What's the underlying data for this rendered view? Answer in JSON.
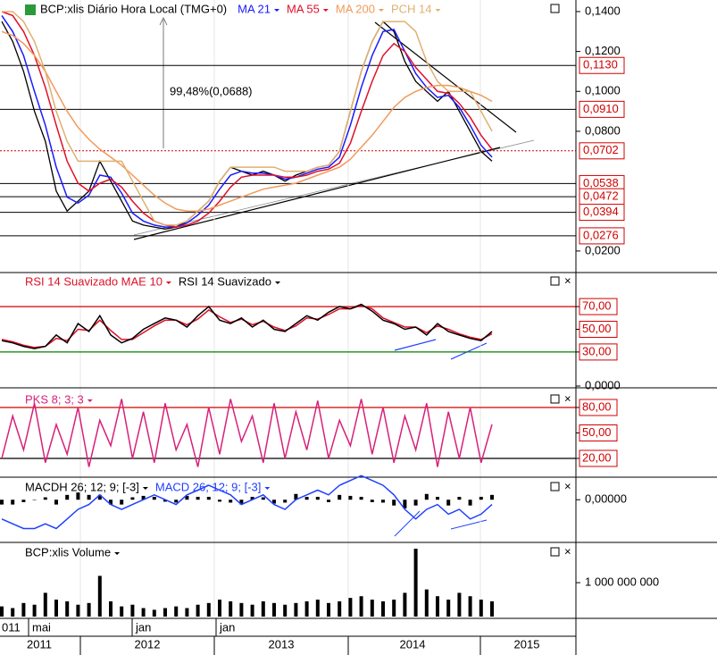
{
  "chart_data": [
    {
      "type": "line",
      "title": "BCP:xlis Diário Hora Local (TMG+0)",
      "annotation": "99,48%(0,0688)",
      "ylim": [
        0.0101,
        0.1458
      ],
      "yticks": [
        {
          "value": 0.14,
          "label": "0,1400"
        },
        {
          "value": 0.12,
          "label": "0,1200"
        },
        {
          "value": 0.1,
          "label": "0,1000"
        },
        {
          "value": 0.08,
          "label": "0,0800"
        },
        {
          "value": 0.02,
          "label": "0,0200"
        }
      ],
      "levels": [
        {
          "value": 0.113,
          "label": "0,1130"
        },
        {
          "value": 0.091,
          "label": "0,0910"
        },
        {
          "value": 0.0702,
          "label": "0,0702"
        },
        {
          "value": 0.0538,
          "label": "0,0538"
        },
        {
          "value": 0.0472,
          "label": "0,0472"
        },
        {
          "value": 0.0394,
          "label": "0,0394"
        },
        {
          "value": 0.0276,
          "label": "0,0276"
        }
      ],
      "series": [
        {
          "color": "#000000",
          "values": [
            0.135,
            0.125,
            0.11,
            0.09,
            0.075,
            0.05,
            0.04,
            0.045,
            0.05,
            0.065,
            0.055,
            0.045,
            0.035,
            0.033,
            0.032,
            0.031,
            0.032,
            0.035,
            0.04,
            0.045,
            0.055,
            0.062,
            0.06,
            0.058,
            0.06,
            0.058,
            0.055,
            0.058,
            0.06,
            0.062,
            0.063,
            0.07,
            0.09,
            0.11,
            0.125,
            0.135,
            0.13,
            0.115,
            0.105,
            0.1,
            0.095,
            0.1,
            0.09,
            0.08,
            0.07,
            0.065
          ]
        },
        {
          "name": "MA 21",
          "color": "#1a1aff",
          "values": [
            0.138,
            0.13,
            0.118,
            0.1,
            0.083,
            0.062,
            0.047,
            0.044,
            0.048,
            0.058,
            0.057,
            0.049,
            0.039,
            0.035,
            0.033,
            0.032,
            0.032,
            0.034,
            0.038,
            0.043,
            0.051,
            0.058,
            0.06,
            0.059,
            0.059,
            0.058,
            0.056,
            0.057,
            0.059,
            0.061,
            0.062,
            0.067,
            0.083,
            0.102,
            0.118,
            0.13,
            0.131,
            0.12,
            0.109,
            0.102,
            0.097,
            0.098,
            0.092,
            0.083,
            0.073,
            0.067
          ]
        },
        {
          "name": "MA 55",
          "color": "#e0102a",
          "values": [
            0.14,
            0.138,
            0.13,
            0.118,
            0.102,
            0.083,
            0.065,
            0.054,
            0.05,
            0.054,
            0.056,
            0.052,
            0.045,
            0.039,
            0.035,
            0.033,
            0.032,
            0.033,
            0.035,
            0.039,
            0.045,
            0.052,
            0.057,
            0.058,
            0.058,
            0.058,
            0.057,
            0.057,
            0.058,
            0.06,
            0.061,
            0.064,
            0.074,
            0.09,
            0.105,
            0.118,
            0.124,
            0.12,
            0.112,
            0.106,
            0.1,
            0.099,
            0.094,
            0.087,
            0.078,
            0.071
          ]
        },
        {
          "name": "MA 200",
          "color": "#f09a5a",
          "values": [
            0.13,
            0.128,
            0.124,
            0.118,
            0.11,
            0.1,
            0.09,
            0.082,
            0.076,
            0.071,
            0.067,
            0.063,
            0.058,
            0.053,
            0.048,
            0.044,
            0.041,
            0.04,
            0.04,
            0.041,
            0.043,
            0.045,
            0.047,
            0.049,
            0.051,
            0.052,
            0.053,
            0.054,
            0.056,
            0.058,
            0.06,
            0.062,
            0.066,
            0.072,
            0.078,
            0.085,
            0.092,
            0.097,
            0.1,
            0.102,
            0.103,
            0.103,
            0.102,
            0.1,
            0.098,
            0.095
          ]
        },
        {
          "name": "PCH 14",
          "color": "#e0b070",
          "values": [
            0.14,
            0.14,
            0.135,
            0.125,
            0.11,
            0.09,
            0.075,
            0.065,
            0.065,
            0.065,
            0.065,
            0.065,
            0.055,
            0.045,
            0.035,
            0.033,
            0.033,
            0.035,
            0.04,
            0.045,
            0.055,
            0.062,
            0.062,
            0.062,
            0.062,
            0.062,
            0.06,
            0.06,
            0.06,
            0.062,
            0.063,
            0.07,
            0.09,
            0.11,
            0.125,
            0.135,
            0.135,
            0.135,
            0.13,
            0.115,
            0.105,
            0.1,
            0.1,
            0.1,
            0.09,
            0.08
          ]
        }
      ]
    },
    {
      "type": "line",
      "ylim": [
        0,
        100
      ],
      "boxed": true,
      "yticks": [
        {
          "value": 70,
          "label": "70,00"
        },
        {
          "value": 50,
          "label": "50,00"
        },
        {
          "value": 30,
          "label": "30,00"
        },
        {
          "value": 0,
          "label": "0,0000"
        }
      ],
      "reference_lines": [
        70,
        30
      ],
      "reference_colors": [
        "#d00000",
        "#008000"
      ],
      "series": [
        {
          "name": "RSI 14 Suavizado MAE 10",
          "color": "#e0102a",
          "values": [
            41,
            39,
            36,
            34,
            35,
            42,
            40,
            50,
            49,
            58,
            49,
            41,
            41,
            47,
            53,
            58,
            58,
            54,
            59,
            67,
            61,
            56,
            59,
            54,
            57,
            52,
            49,
            53,
            60,
            59,
            63,
            68,
            68,
            71,
            68,
            60,
            56,
            52,
            52,
            47,
            53,
            50,
            46,
            43,
            41,
            46
          ]
        },
        {
          "name": "RSI 14 Suavizado",
          "color": "#000000",
          "values": [
            40,
            38,
            35,
            33,
            35,
            45,
            38,
            55,
            48,
            62,
            45,
            38,
            42,
            50,
            55,
            60,
            58,
            52,
            62,
            70,
            58,
            55,
            60,
            52,
            58,
            50,
            48,
            55,
            62,
            58,
            65,
            70,
            68,
            72,
            66,
            58,
            55,
            50,
            52,
            45,
            55,
            48,
            45,
            42,
            40,
            48
          ]
        }
      ]
    },
    {
      "type": "line",
      "ylim": [
        0,
        100
      ],
      "boxed": true,
      "yticks": [
        {
          "value": 80,
          "label": "80,00"
        },
        {
          "value": 50,
          "label": "50,00"
        },
        {
          "value": 20,
          "label": "20,00"
        }
      ],
      "reference_lines": [
        80,
        20
      ],
      "reference_colors": [
        "#d00000",
        "#000000"
      ],
      "series": [
        {
          "name": "PKS 8; 3; 3",
          "color": "#d8207a",
          "values": [
            20,
            70,
            30,
            85,
            15,
            60,
            25,
            80,
            10,
            65,
            35,
            90,
            20,
            75,
            15,
            85,
            30,
            60,
            10,
            80,
            25,
            90,
            40,
            70,
            15,
            85,
            20,
            75,
            30,
            88,
            20,
            65,
            35,
            90,
            25,
            80,
            15,
            70,
            30,
            85,
            10,
            75,
            20,
            80,
            15,
            60
          ]
        }
      ]
    },
    {
      "type": "line",
      "ylim": [
        -0.0085,
        0.0045
      ],
      "yticks": [
        {
          "value": 0,
          "label": "0,00000"
        }
      ],
      "series": [
        {
          "name": "MACDH 26; 12; 9; [-3]",
          "color": "#000000",
          "style": "bar",
          "values": [
            -0.001,
            -0.001,
            -0.0005,
            0,
            0.0005,
            -0.001,
            0.001,
            0.0015,
            0.001,
            0.001,
            -0.001,
            -0.001,
            0.0005,
            0.0008,
            0.0006,
            -0.0004,
            -0.0006,
            0.0008,
            0.0006,
            0.0006,
            -0.0004,
            -0.0006,
            -0.001,
            0.0006,
            0.0005,
            -0.0008,
            -0.0006,
            0.0012,
            0.0006,
            0.0006,
            -0.0005,
            0.001,
            0.0008,
            0.0006,
            -0.0005,
            -0.0006,
            -0.0012,
            -0.0018,
            -0.0012,
            0.0012,
            0.0006,
            -0.0012,
            0.0006,
            -0.0012,
            0.0006,
            0.001
          ]
        },
        {
          "name": "MACD 26; 12; 9; [-3]",
          "color": "#2040ff",
          "values": [
            -0.004,
            -0.005,
            -0.006,
            -0.006,
            -0.005,
            -0.006,
            -0.004,
            -0.002,
            -0.001,
            0.001,
            -0.001,
            -0.002,
            -0.001,
            0,
            0.001,
            0,
            -0.001,
            0.001,
            0.002,
            0.003,
            0.002,
            0.001,
            -0.001,
            0,
            0.001,
            -0.001,
            -0.002,
            0,
            0.001,
            0.002,
            0.001,
            0.003,
            0.004,
            0.005,
            0.004,
            0.003,
            0.001,
            -0.002,
            -0.004,
            -0.002,
            -0.001,
            -0.003,
            -0.002,
            -0.004,
            -0.003,
            -0.001
          ]
        }
      ]
    },
    {
      "type": "bar",
      "ylim": [
        0,
        2160000000
      ],
      "yticks": [
        {
          "value": 1000000000,
          "label": "1 000 000 000"
        }
      ],
      "series": [
        {
          "name": "BCP:xlis Volume",
          "color": "#000000",
          "style": "bar",
          "values": [
            300000000,
            250000000,
            400000000,
            350000000,
            700000000,
            500000000,
            450000000,
            350000000,
            400000000,
            1200000000,
            450000000,
            300000000,
            350000000,
            250000000,
            200000000,
            250000000,
            300000000,
            250000000,
            350000000,
            400000000,
            500000000,
            450000000,
            400000000,
            350000000,
            450000000,
            400000000,
            350000000,
            400000000,
            450000000,
            500000000,
            400000000,
            450000000,
            550000000,
            600000000,
            500000000,
            450000000,
            500000000,
            700000000,
            2000000000,
            800000000,
            600000000,
            500000000,
            700000000,
            600000000,
            500000000,
            450000000
          ]
        }
      ]
    }
  ],
  "time_axis": {
    "months": [
      "011",
      "mai",
      "jan",
      "jan"
    ],
    "years": [
      "2011",
      "2012",
      "2013",
      "2014",
      "2015"
    ]
  }
}
